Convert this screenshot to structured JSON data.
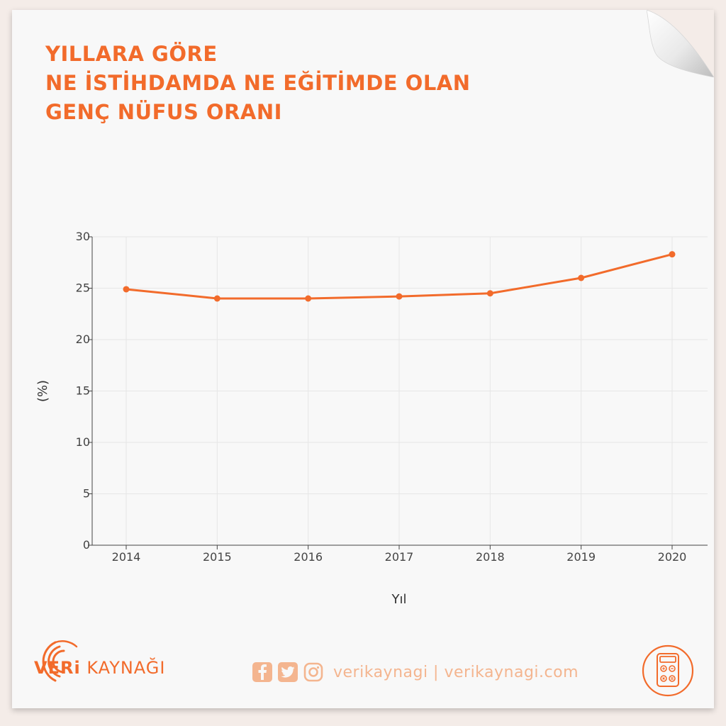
{
  "title_lines": [
    "YILLARA GÖRE",
    "NE İSTİHDAMDA NE EĞİTİMDE OLAN",
    "GENÇ NÜFUS ORANI"
  ],
  "footer": {
    "logo_bold": "VERi",
    "logo_rest": " KAYNAĞI",
    "social_text": "verikaynagi | verikaynagi.com"
  },
  "colors": {
    "accent": "#f26b2b",
    "soft_accent": "#f4b58f",
    "gridline": "#e6e6e6"
  },
  "icons": [
    "facebook-icon",
    "twitter-icon",
    "instagram-icon",
    "calculator-icon"
  ],
  "chart_data": {
    "type": "line",
    "title": "",
    "xlabel": "Yıl",
    "ylabel": "(%)",
    "x": [
      "2014",
      "2015",
      "2016",
      "2017",
      "2018",
      "2019",
      "2020"
    ],
    "series": [
      {
        "values": [
          24.9,
          24.0,
          24.0,
          24.2,
          24.5,
          26.0,
          28.3
        ]
      }
    ],
    "ylim": [
      0,
      30
    ],
    "yticks": [
      0,
      5,
      10,
      15,
      20,
      25,
      30
    ],
    "grid": true,
    "legend": "none"
  }
}
